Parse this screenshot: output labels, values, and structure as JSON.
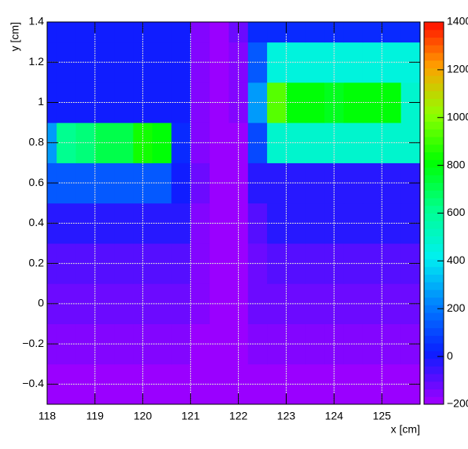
{
  "chart_data": {
    "type": "heatmap",
    "x_label": "x [cm]",
    "y_label": "y [cm]",
    "x": [
      118.0,
      118.4,
      118.8,
      119.2,
      119.6,
      120.0,
      120.4,
      120.8,
      121.2,
      121.6,
      122.0,
      122.4,
      122.8,
      123.2,
      123.6,
      124.0,
      124.4,
      124.8,
      125.2,
      125.6
    ],
    "y": [
      -0.4,
      -0.2,
      0,
      0.2,
      0.4,
      0.6,
      0.8,
      1.0,
      1.2,
      1.4
    ],
    "z": [
      [
        -190,
        -190,
        -190,
        -190,
        -190,
        -190,
        -190,
        -190,
        -195,
        -200,
        -200,
        -190,
        -190,
        -190,
        -190,
        -190,
        -190,
        -190,
        -190,
        -190
      ],
      [
        -150,
        -150,
        -150,
        -150,
        -150,
        -150,
        -150,
        -150,
        -170,
        -190,
        -190,
        -160,
        -150,
        -150,
        -150,
        -150,
        -150,
        -150,
        -150,
        -150
      ],
      [
        -110,
        -110,
        -110,
        -110,
        -110,
        -110,
        -110,
        -110,
        -160,
        -185,
        -185,
        -130,
        -110,
        -110,
        -110,
        -110,
        -110,
        -110,
        -110,
        -110
      ],
      [
        -80,
        -80,
        -80,
        -80,
        -80,
        -80,
        -80,
        -80,
        -150,
        -180,
        -180,
        -110,
        -80,
        -80,
        -80,
        -80,
        -80,
        -80,
        -80,
        -80
      ],
      [
        -40,
        -40,
        -40,
        -40,
        -40,
        -40,
        -40,
        -40,
        -140,
        -175,
        -175,
        -80,
        -40,
        -40,
        -40,
        -40,
        -40,
        -40,
        -40,
        -40
      ],
      [
        150,
        150,
        150,
        150,
        150,
        150,
        150,
        20,
        -130,
        -170,
        -170,
        -30,
        -10,
        -10,
        -10,
        -10,
        -10,
        -10,
        -10,
        -10
      ],
      [
        250,
        600,
        650,
        700,
        700,
        850,
        800,
        50,
        -150,
        -180,
        -170,
        100,
        500,
        500,
        500,
        500,
        500,
        500,
        500,
        500
      ],
      [
        20,
        20,
        20,
        20,
        20,
        20,
        20,
        20,
        -160,
        -180,
        -140,
        250,
        950,
        800,
        800,
        780,
        800,
        800,
        800,
        500
      ],
      [
        10,
        10,
        10,
        10,
        10,
        10,
        10,
        10,
        -160,
        -180,
        -150,
        150,
        450,
        450,
        450,
        450,
        450,
        450,
        450,
        450
      ],
      [
        0,
        0,
        0,
        0,
        0,
        0,
        0,
        0,
        -150,
        -180,
        -120,
        50,
        50,
        50,
        50,
        50,
        50,
        50,
        50,
        50
      ]
    ],
    "xlim": [
      118,
      125.8
    ],
    "ylim": [
      -0.5,
      1.4
    ],
    "zlim": [
      -200,
      1400
    ],
    "xticks": [
      118,
      119,
      120,
      121,
      122,
      123,
      124,
      125
    ],
    "yticks": [
      {
        "value": -0.4,
        "label": "−0.4"
      },
      {
        "value": -0.2,
        "label": "−0.2"
      },
      0,
      0.2,
      0.4,
      0.6,
      0.8,
      1,
      1.2,
      1.4
    ],
    "zticks": [
      {
        "value": -200,
        "label": "−200"
      },
      0,
      200,
      400,
      600,
      800,
      1000,
      1200,
      1400
    ],
    "grid": true,
    "colorscale": [
      [
        -200,
        "#9a00ff"
      ],
      [
        0,
        "#0a1eff"
      ],
      [
        200,
        "#0080ff"
      ],
      [
        400,
        "#00f0f0"
      ],
      [
        600,
        "#00ff90"
      ],
      [
        800,
        "#00ff00"
      ],
      [
        1000,
        "#90ff00"
      ],
      [
        1200,
        "#ffa000"
      ],
      [
        1400,
        "#ff0000"
      ]
    ]
  }
}
